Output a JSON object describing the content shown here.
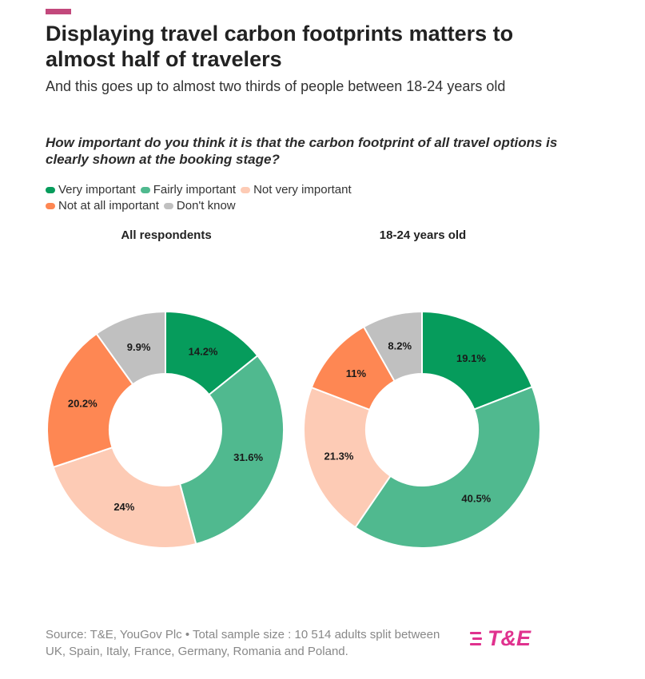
{
  "header": {
    "accent_color": "#c2487c",
    "title": "Displaying travel carbon footprints matters to almost half of travelers",
    "subtitle": "And this goes up to almost two thirds of people between 18-24 years old",
    "question": "How important do you think it is that the carbon footprint of all travel options is clearly shown at the booking stage?"
  },
  "legend": [
    {
      "label": "Very important",
      "color": "#069c5c"
    },
    {
      "label": "Fairly important",
      "color": "#50b98f"
    },
    {
      "label": "Not very important",
      "color": "#fdcbb5"
    },
    {
      "label": "Not at all important",
      "color": "#fe8753"
    },
    {
      "label": "Don't know",
      "color": "#c0c0c0"
    }
  ],
  "chart_data": [
    {
      "type": "pie",
      "variant": "donut",
      "title": "All respondents",
      "categories": [
        "Very important",
        "Fairly important",
        "Not very important",
        "Not at all important",
        "Don't know"
      ],
      "values": [
        14.2,
        31.6,
        24,
        20.2,
        9.9
      ],
      "labels": [
        "14.2%",
        "31.6%",
        "24%",
        "20.2%",
        "9.9%"
      ],
      "colors": [
        "#069c5c",
        "#50b98f",
        "#fdcbb5",
        "#fe8753",
        "#c0c0c0"
      ]
    },
    {
      "type": "pie",
      "variant": "donut",
      "title": "18-24 years old",
      "categories": [
        "Very important",
        "Fairly important",
        "Not very important",
        "Not at all important",
        "Don't know"
      ],
      "values": [
        19.1,
        40.5,
        21.3,
        11,
        8.2
      ],
      "labels": [
        "19.1%",
        "40.5%",
        "21.3%",
        "11%",
        "8.2%"
      ],
      "colors": [
        "#069c5c",
        "#50b98f",
        "#fdcbb5",
        "#fe8753",
        "#c0c0c0"
      ]
    }
  ],
  "footer": {
    "source": "Source: T&E, YouGov Plc • Total sample size : 10 514 adults split between UK, Spain, Italy, France, Germany, Romania and Poland.",
    "logo_text": "T&E",
    "logo_color": "#e0318e"
  }
}
